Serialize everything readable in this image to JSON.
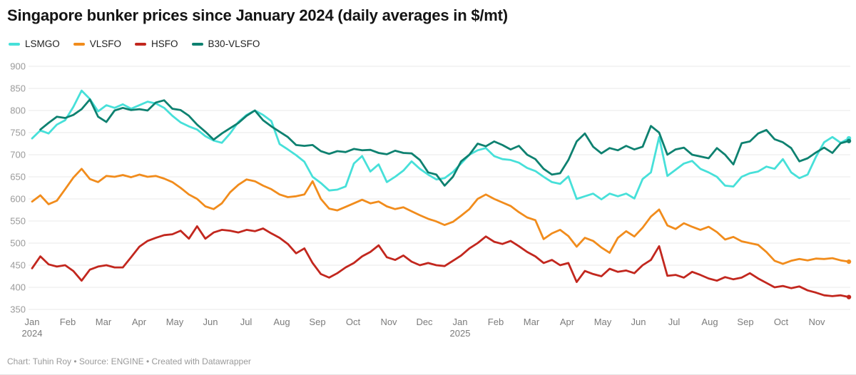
{
  "header": {
    "title": "Singapore bunker prices since January 2024 (daily averages in $/mt)"
  },
  "legend": {
    "items": [
      {
        "label": "LSMGO",
        "color": "#47e0d9"
      },
      {
        "label": "VLSFO",
        "color": "#f18c1c"
      },
      {
        "label": "HSFO",
        "color": "#c2271e"
      },
      {
        "label": "B30-VLSFO",
        "color": "#0e8170"
      }
    ]
  },
  "footer": {
    "text": "Chart: Tuhin Roy • Source: ENGINE • Created with Datawrapper"
  },
  "chart_data": {
    "type": "line",
    "title": "Singapore bunker prices since January 2024 (daily averages in $/mt)",
    "unit": "$/mt",
    "ylim": [
      350,
      900
    ],
    "grid": "horizontal",
    "legend_position": "top-left",
    "y_ticks": [
      900,
      850,
      800,
      750,
      700,
      650,
      600,
      550,
      500,
      450,
      400,
      350
    ],
    "x_ticks": [
      {
        "label": "Jan",
        "year": "2024"
      },
      {
        "label": "Feb"
      },
      {
        "label": "Mar"
      },
      {
        "label": "Apr"
      },
      {
        "label": "May"
      },
      {
        "label": "Jun"
      },
      {
        "label": "Jul"
      },
      {
        "label": "Aug"
      },
      {
        "label": "Sep"
      },
      {
        "label": "Oct"
      },
      {
        "label": "Nov"
      },
      {
        "label": "Dec"
      },
      {
        "label": "Jan",
        "year": "2025"
      },
      {
        "label": "Feb"
      },
      {
        "label": "Mar"
      },
      {
        "label": "Apr"
      },
      {
        "label": "May"
      },
      {
        "label": "Jun"
      },
      {
        "label": "Jul"
      },
      {
        "label": "Aug"
      },
      {
        "label": "Sep"
      },
      {
        "label": "Oct"
      },
      {
        "label": "Nov"
      }
    ],
    "sampling": "approximately weekly points, Jan 2024 through late Nov 2025",
    "series": [
      {
        "name": "LSMGO",
        "color": "#47e0d9",
        "values": [
          737,
          755,
          748,
          768,
          778,
          808,
          845,
          826,
          798,
          812,
          806,
          814,
          804,
          812,
          820,
          816,
          806,
          788,
          773,
          764,
          757,
          742,
          732,
          727,
          748,
          774,
          790,
          800,
          790,
          776,
          724,
          712,
          699,
          684,
          650,
          636,
          619,
          621,
          628,
          680,
          697,
          662,
          678,
          638,
          650,
          664,
          685,
          668,
          655,
          644,
          647,
          661,
          680,
          700,
          710,
          715,
          697,
          690,
          688,
          682,
          670,
          663,
          650,
          638,
          634,
          651,
          600,
          606,
          612,
          599,
          612,
          606,
          612,
          601,
          645,
          660,
          740,
          652,
          666,
          680,
          686,
          668,
          660,
          650,
          630,
          628,
          650,
          658,
          662,
          673,
          668,
          690,
          660,
          647,
          655,
          695,
          728,
          740,
          727,
          737
        ]
      },
      {
        "name": "VLSFO",
        "color": "#f18c1c",
        "values": [
          594,
          608,
          588,
          596,
          622,
          648,
          668,
          645,
          638,
          652,
          650,
          654,
          649,
          655,
          650,
          652,
          646,
          638,
          625,
          610,
          600,
          583,
          577,
          590,
          615,
          632,
          644,
          640,
          630,
          622,
          610,
          604,
          606,
          610,
          640,
          600,
          578,
          574,
          582,
          590,
          598,
          590,
          594,
          583,
          577,
          581,
          572,
          563,
          555,
          549,
          541,
          548,
          562,
          577,
          600,
          610,
          600,
          592,
          584,
          570,
          558,
          552,
          509,
          522,
          530,
          516,
          492,
          512,
          505,
          490,
          478,
          512,
          527,
          515,
          535,
          560,
          576,
          540,
          532,
          545,
          537,
          530,
          537,
          525,
          508,
          514,
          504,
          500,
          496,
          480,
          460,
          453,
          460,
          464,
          461,
          465,
          464,
          466,
          461,
          458
        ]
      },
      {
        "name": "HSFO",
        "color": "#c2271e",
        "values": [
          443,
          470,
          452,
          447,
          450,
          437,
          415,
          440,
          447,
          450,
          445,
          445,
          468,
          492,
          505,
          512,
          518,
          520,
          528,
          510,
          538,
          510,
          524,
          530,
          528,
          524,
          530,
          527,
          533,
          522,
          512,
          498,
          477,
          488,
          455,
          430,
          422,
          432,
          445,
          455,
          470,
          480,
          495,
          468,
          462,
          472,
          458,
          450,
          455,
          450,
          448,
          460,
          472,
          488,
          500,
          515,
          503,
          498,
          505,
          493,
          480,
          470,
          455,
          462,
          450,
          455,
          412,
          437,
          430,
          425,
          442,
          435,
          438,
          432,
          450,
          462,
          493,
          426,
          428,
          422,
          435,
          428,
          420,
          415,
          423,
          418,
          422,
          432,
          420,
          410,
          400,
          403,
          398,
          402,
          393,
          388,
          382,
          380,
          382,
          378
        ]
      },
      {
        "name": "B30-VLSFO",
        "color": "#0e8170",
        "values": [
          null,
          757,
          772,
          786,
          783,
          790,
          803,
          825,
          786,
          774,
          800,
          806,
          801,
          803,
          800,
          818,
          823,
          804,
          801,
          788,
          768,
          752,
          734,
          748,
          760,
          772,
          788,
          800,
          778,
          764,
          752,
          740,
          722,
          720,
          722,
          708,
          702,
          708,
          706,
          713,
          710,
          711,
          704,
          701,
          709,
          704,
          703,
          688,
          660,
          655,
          630,
          650,
          685,
          700,
          725,
          719,
          730,
          722,
          712,
          720,
          700,
          690,
          668,
          655,
          658,
          688,
          730,
          748,
          718,
          703,
          715,
          710,
          720,
          712,
          718,
          765,
          750,
          700,
          712,
          716,
          700,
          696,
          692,
          715,
          700,
          678,
          726,
          730,
          748,
          756,
          735,
          728,
          715,
          685,
          692,
          705,
          716,
          704,
          726,
          731
        ]
      }
    ]
  }
}
